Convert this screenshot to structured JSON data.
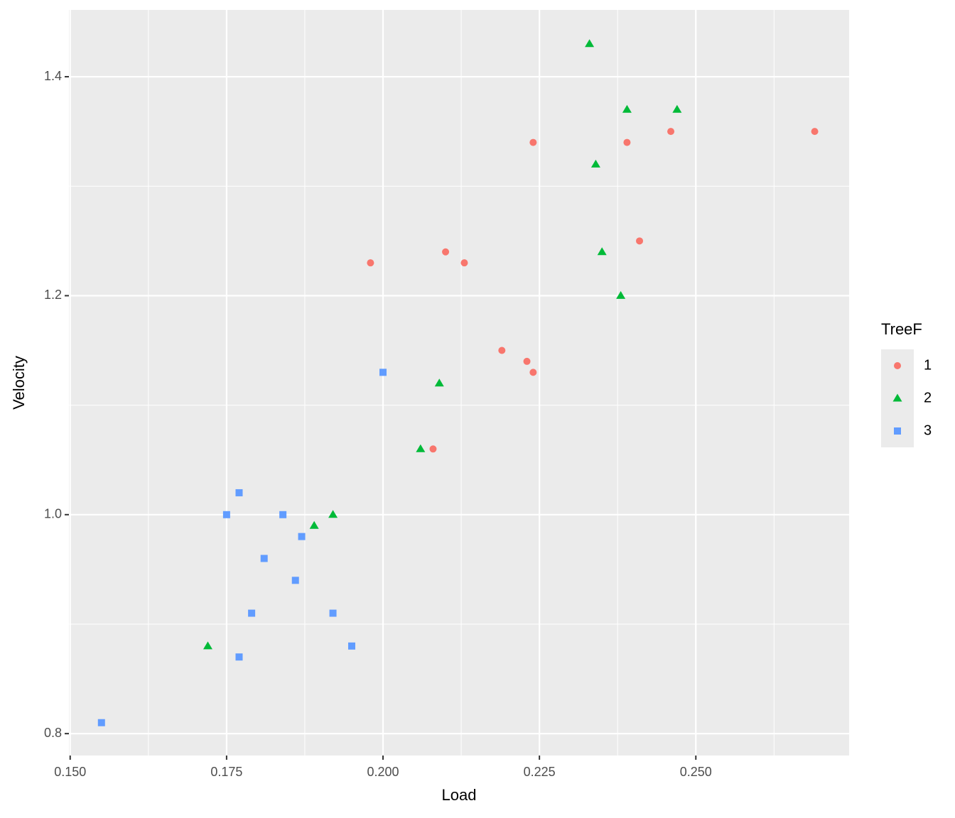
{
  "chart_data": {
    "type": "scatter",
    "x_label": "Load",
    "y_label": "Velocity",
    "legend_title": "TreeF",
    "legend_position": "right",
    "xlim": [
      0.1498,
      0.2745
    ],
    "ylim": [
      0.78,
      1.461
    ],
    "xticks": [
      {
        "value": 0.15,
        "label": "0.150"
      },
      {
        "value": 0.175,
        "label": "0.175"
      },
      {
        "value": 0.2,
        "label": "0.200"
      },
      {
        "value": 0.225,
        "label": "0.225"
      },
      {
        "value": 0.25,
        "label": "0.250"
      }
    ],
    "yticks": [
      0.8,
      {
        "value": 1,
        "label": "1.0"
      },
      1.2,
      1.4
    ],
    "x_minor_grid": [
      0.1625,
      0.1875,
      0.2125,
      0.2375,
      0.2625
    ],
    "y_minor_grid": [
      0.9,
      1.1,
      1.3
    ],
    "grid": true,
    "series": [
      {
        "name": "1",
        "color": "#F8766D",
        "shape": "circle",
        "x": [
          0.198,
          0.21,
          0.213,
          0.219,
          0.223,
          0.224,
          0.208,
          0.224,
          0.239,
          0.246,
          0.241,
          0.269
        ],
        "values": [
          1.23,
          1.24,
          1.23,
          1.15,
          1.14,
          1.13,
          1.06,
          1.34,
          1.34,
          1.35,
          1.25,
          1.35
        ]
      },
      {
        "name": "2",
        "color": "#00BA38",
        "shape": "triangle",
        "x": [
          0.233,
          0.239,
          0.247,
          0.234,
          0.235,
          0.238,
          0.209,
          0.206,
          0.192,
          0.189,
          0.172
        ],
        "values": [
          1.43,
          1.37,
          1.37,
          1.32,
          1.24,
          1.2,
          1.12,
          1.06,
          1.0,
          0.99,
          0.88
        ]
      },
      {
        "name": "3",
        "color": "#619CFF",
        "shape": "square",
        "x": [
          0.2,
          0.177,
          0.175,
          0.184,
          0.187,
          0.181,
          0.186,
          0.179,
          0.192,
          0.177,
          0.195,
          0.155
        ],
        "values": [
          1.13,
          1.02,
          1.0,
          1.0,
          0.98,
          0.96,
          0.94,
          0.91,
          0.91,
          0.87,
          0.88,
          0.81
        ]
      }
    ]
  }
}
